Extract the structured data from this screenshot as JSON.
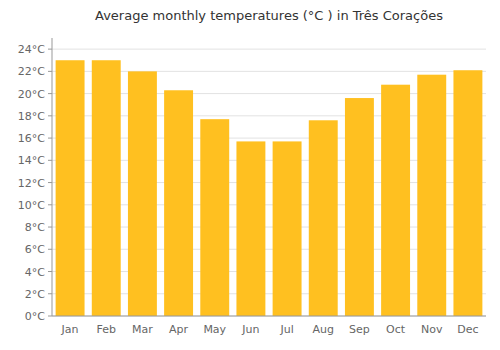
{
  "chart_data": {
    "type": "bar",
    "title": "Average monthly temperatures (°C ) in Três Corações",
    "categories": [
      "Jan",
      "Feb",
      "Mar",
      "Apr",
      "May",
      "Jun",
      "Jul",
      "Aug",
      "Sep",
      "Oct",
      "Nov",
      "Dec"
    ],
    "values": [
      23.0,
      23.0,
      22.0,
      20.3,
      17.7,
      15.7,
      15.7,
      17.6,
      19.6,
      20.8,
      21.7,
      22.1
    ],
    "color": "#FFC020",
    "ylim": [
      0,
      25
    ],
    "yticks": [
      {
        "value": 0,
        "label": "0°C"
      },
      {
        "value": 2,
        "label": "2°C"
      },
      {
        "value": 4,
        "label": "4°C"
      },
      {
        "value": 6,
        "label": "6°C"
      },
      {
        "value": 8,
        "label": "8°C"
      },
      {
        "value": 10,
        "label": "10°C"
      },
      {
        "value": 12,
        "label": "12°C"
      },
      {
        "value": 14,
        "label": "14°C"
      },
      {
        "value": 16,
        "label": "16°C"
      },
      {
        "value": 18,
        "label": "18°C"
      },
      {
        "value": 20,
        "label": "20°C"
      },
      {
        "value": 22,
        "label": "22°C"
      },
      {
        "value": 24,
        "label": "24°C"
      }
    ],
    "grid": true
  }
}
